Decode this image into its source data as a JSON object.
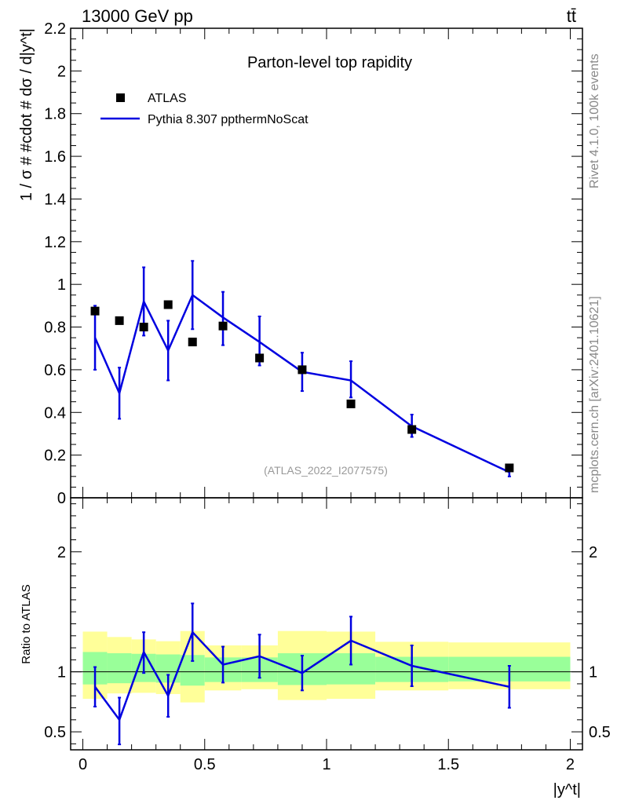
{
  "header": {
    "energy_label": "13000 GeV pp",
    "process_label": "tt̄"
  },
  "side_text": {
    "rivet": "Rivet 4.1.0,  100k events",
    "mcplots": "mcplots.cern.ch [arXiv:2401.10621]"
  },
  "colors": {
    "mc_line": "#0000e0",
    "data_marker": "#000000",
    "band_inner": "#99ff99",
    "band_outer": "#ffff99"
  },
  "chart_data": [
    {
      "type": "scatter",
      "title": "Parton-level top rapidity",
      "watermark": "(ATLAS_2022_I2077575)",
      "ylabel": "1 / σ # #cdot # dσ / d|y^t|",
      "ylim": [
        0,
        2.2
      ],
      "yticks": [
        "0",
        "0.2",
        "0.4",
        "0.6",
        "0.8",
        "1",
        "1.2",
        "1.4",
        "1.6",
        "1.8",
        "2",
        "2.2"
      ],
      "legend": [
        {
          "name": "ATLAS",
          "style": "marker"
        },
        {
          "name": "Pythia 8.307 ppthermNoScat",
          "style": "line"
        }
      ],
      "data": {
        "name": "ATLAS",
        "x": [
          0.05,
          0.15,
          0.25,
          0.35,
          0.45,
          0.575,
          0.725,
          0.9,
          1.1,
          1.35,
          1.75
        ],
        "y": [
          0.875,
          0.83,
          0.8,
          0.905,
          0.73,
          0.805,
          0.655,
          0.6,
          0.44,
          0.32,
          0.14
        ]
      },
      "mc": {
        "name": "Pythia 8.307 ppthermNoScat",
        "x": [
          0.05,
          0.15,
          0.25,
          0.35,
          0.45,
          0.575,
          0.725,
          0.9,
          1.1,
          1.35,
          1.75
        ],
        "y": [
          0.75,
          0.49,
          0.92,
          0.69,
          0.95,
          0.845,
          0.73,
          0.59,
          0.55,
          0.335,
          0.12
        ],
        "err_low": [
          0.15,
          0.12,
          0.16,
          0.14,
          0.16,
          0.13,
          0.11,
          0.09,
          0.08,
          0.05,
          0.02
        ],
        "err_high": [
          0.15,
          0.12,
          0.16,
          0.14,
          0.16,
          0.12,
          0.12,
          0.09,
          0.09,
          0.055,
          0.02
        ]
      }
    },
    {
      "type": "line",
      "ylabel": "Ratio to ATLAS",
      "xlabel": "|y^t|",
      "xlim": [
        -0.05,
        2.05
      ],
      "ylim": [
        0.35,
        2.45
      ],
      "xticks": [
        "0",
        "0.5",
        "1",
        "1.5",
        "2"
      ],
      "yticks": [
        "0.5",
        "1",
        "2"
      ],
      "bins": [
        0,
        0.1,
        0.2,
        0.3,
        0.4,
        0.5,
        0.65,
        0.8,
        1.0,
        1.2,
        1.5,
        2.0
      ],
      "band_inner": [
        [
          0.895,
          1.165
        ],
        [
          0.905,
          1.155
        ],
        [
          0.915,
          1.15
        ],
        [
          0.91,
          1.145
        ],
        [
          0.885,
          1.14
        ],
        [
          0.915,
          1.12
        ],
        [
          0.915,
          1.12
        ],
        [
          0.89,
          1.155
        ],
        [
          0.895,
          1.155
        ],
        [
          0.915,
          1.125
        ],
        [
          0.92,
          1.125
        ]
      ],
      "band_outer": [
        [
          0.775,
          1.335
        ],
        [
          0.82,
          1.29
        ],
        [
          0.825,
          1.27
        ],
        [
          0.815,
          1.255
        ],
        [
          0.745,
          1.34
        ],
        [
          0.845,
          1.22
        ],
        [
          0.855,
          1.22
        ],
        [
          0.765,
          1.34
        ],
        [
          0.775,
          1.335
        ],
        [
          0.845,
          1.25
        ],
        [
          0.855,
          1.245
        ]
      ],
      "reference_y": 1,
      "ratio": {
        "x": [
          0.05,
          0.15,
          0.25,
          0.35,
          0.45,
          0.575,
          0.725,
          0.9,
          1.1,
          1.35,
          1.75
        ],
        "y": [
          0.875,
          0.6,
          1.165,
          0.8,
          1.33,
          1.06,
          1.13,
          0.99,
          1.26,
          1.05,
          0.875
        ],
        "err_low": [
          0.165,
          0.205,
          0.175,
          0.175,
          0.24,
          0.15,
          0.18,
          0.145,
          0.2,
          0.17,
          0.175
        ],
        "err_high": [
          0.165,
          0.185,
          0.165,
          0.175,
          0.24,
          0.15,
          0.18,
          0.145,
          0.2,
          0.17,
          0.175
        ]
      }
    }
  ]
}
